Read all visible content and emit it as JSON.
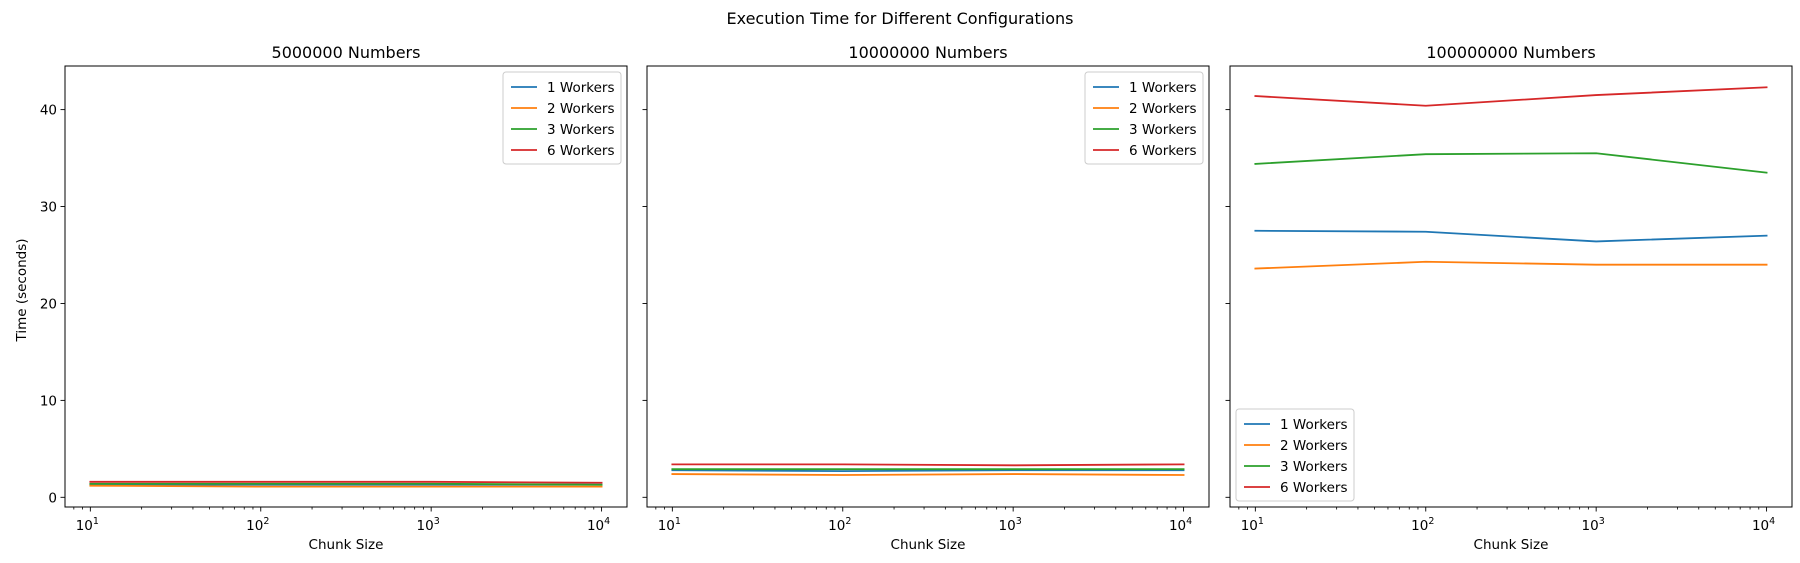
{
  "figure": {
    "title": "Execution Time for Different Configurations",
    "ylabel": "Time (seconds)"
  },
  "colors": {
    "1 Workers": "#1f77b4",
    "2 Workers": "#ff7f0e",
    "3 Workers": "#2ca02c",
    "6 Workers": "#d62728"
  },
  "chart_data": [
    {
      "type": "line",
      "title": "5000000 Numbers",
      "xlabel": "Chunk Size",
      "ylabel": "Time (seconds)",
      "x_scale": "log",
      "x": [
        10,
        100,
        1000,
        10000
      ],
      "x_ticks": [
        {
          "value": 10,
          "base": "10",
          "exp": "1"
        },
        {
          "value": 100,
          "base": "10",
          "exp": "2"
        },
        {
          "value": 1000,
          "base": "10",
          "exp": "3"
        },
        {
          "value": 10000,
          "base": "10",
          "exp": "4"
        }
      ],
      "xlim": [
        7.1,
        14100
      ],
      "ylim": [
        -1.0,
        44.5
      ],
      "y_ticks": [
        0,
        10,
        20,
        30,
        40
      ],
      "show_y_tick_labels": true,
      "legend": "upper right",
      "grid": false,
      "series": [
        {
          "name": "1 Workers",
          "values": [
            1.3,
            1.3,
            1.3,
            1.3
          ]
        },
        {
          "name": "2 Workers",
          "values": [
            1.2,
            1.1,
            1.1,
            1.1
          ]
        },
        {
          "name": "3 Workers",
          "values": [
            1.4,
            1.4,
            1.4,
            1.3
          ]
        },
        {
          "name": "6 Workers",
          "values": [
            1.6,
            1.6,
            1.6,
            1.5
          ]
        }
      ]
    },
    {
      "type": "line",
      "title": "10000000 Numbers",
      "xlabel": "Chunk Size",
      "x_scale": "log",
      "x": [
        10,
        100,
        1000,
        10000
      ],
      "x_ticks": [
        {
          "value": 10,
          "base": "10",
          "exp": "1"
        },
        {
          "value": 100,
          "base": "10",
          "exp": "2"
        },
        {
          "value": 1000,
          "base": "10",
          "exp": "3"
        },
        {
          "value": 10000,
          "base": "10",
          "exp": "4"
        }
      ],
      "xlim": [
        7.1,
        14100
      ],
      "ylim": [
        -1.0,
        44.5
      ],
      "y_ticks": [
        0,
        10,
        20,
        30,
        40
      ],
      "show_y_tick_labels": false,
      "legend": "upper right",
      "grid": false,
      "series": [
        {
          "name": "1 Workers",
          "values": [
            2.8,
            2.7,
            2.8,
            2.8
          ]
        },
        {
          "name": "2 Workers",
          "values": [
            2.4,
            2.3,
            2.4,
            2.3
          ]
        },
        {
          "name": "3 Workers",
          "values": [
            2.9,
            2.9,
            2.9,
            2.9
          ]
        },
        {
          "name": "6 Workers",
          "values": [
            3.4,
            3.4,
            3.3,
            3.4
          ]
        }
      ]
    },
    {
      "type": "line",
      "title": "100000000 Numbers",
      "xlabel": "Chunk Size",
      "x_scale": "log",
      "x": [
        10,
        100,
        1000,
        10000
      ],
      "x_ticks": [
        {
          "value": 10,
          "base": "10",
          "exp": "1"
        },
        {
          "value": 100,
          "base": "10",
          "exp": "2"
        },
        {
          "value": 1000,
          "base": "10",
          "exp": "3"
        },
        {
          "value": 10000,
          "base": "10",
          "exp": "4"
        }
      ],
      "xlim": [
        7.1,
        14100
      ],
      "ylim": [
        -1.0,
        44.5
      ],
      "y_ticks": [
        0,
        10,
        20,
        30,
        40
      ],
      "show_y_tick_labels": false,
      "legend": "lower left",
      "grid": false,
      "series": [
        {
          "name": "1 Workers",
          "values": [
            27.5,
            27.4,
            26.4,
            27.0
          ]
        },
        {
          "name": "2 Workers",
          "values": [
            23.6,
            24.3,
            24.0,
            24.0
          ]
        },
        {
          "name": "3 Workers",
          "values": [
            34.4,
            35.4,
            35.5,
            33.5
          ]
        },
        {
          "name": "6 Workers",
          "values": [
            41.4,
            40.4,
            41.5,
            42.3
          ]
        }
      ]
    }
  ]
}
